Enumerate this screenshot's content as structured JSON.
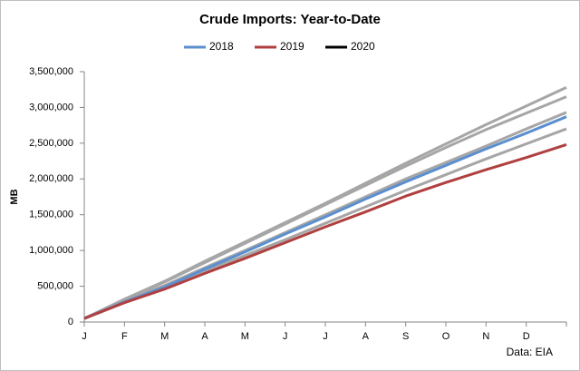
{
  "chart_data": {
    "type": "line",
    "title": "Crude Imports: Year-to-Date",
    "ylabel": "MB",
    "source": "Data: EIA",
    "categories": [
      "J",
      "F",
      "M",
      "A",
      "M",
      "J",
      "J",
      "A",
      "S",
      "O",
      "N",
      "D",
      null
    ],
    "series": [
      {
        "color": "#a6a6a6",
        "values": [
          50000,
          320000,
          570000,
          850000,
          1120000,
          1390000,
          1660000,
          1940000,
          2220000,
          2490000,
          2760000,
          3020000,
          3280000
        ]
      },
      {
        "color": "#a6a6a6",
        "values": [
          50000,
          310000,
          560000,
          830000,
          1100000,
          1370000,
          1640000,
          1910000,
          2180000,
          2440000,
          2690000,
          2920000,
          3150000
        ]
      },
      {
        "color": "#a6a6a6",
        "values": [
          50000,
          290000,
          510000,
          760000,
          1000000,
          1250000,
          1500000,
          1750000,
          2000000,
          2230000,
          2460000,
          2700000,
          2930000
        ]
      },
      {
        "color": "#a6a6a6",
        "values": [
          50000,
          280000,
          480000,
          710000,
          930000,
          1150000,
          1380000,
          1610000,
          1840000,
          2060000,
          2280000,
          2490000,
          2700000
        ]
      },
      {
        "name": "2018",
        "color": "#5b8fd0",
        "values": [
          50000,
          280000,
          490000,
          740000,
          980000,
          1230000,
          1470000,
          1720000,
          1960000,
          2190000,
          2420000,
          2640000,
          2870000
        ]
      },
      {
        "name": "2019",
        "color": "#b04040",
        "values": [
          50000,
          270000,
          460000,
          680000,
          890000,
          1110000,
          1330000,
          1540000,
          1760000,
          1950000,
          2130000,
          2300000,
          2480000
        ]
      },
      {
        "name": "2020",
        "color": "#000000",
        "values": [
          null,
          null,
          null,
          null,
          null,
          null,
          null,
          null,
          null,
          null,
          null,
          null,
          null
        ]
      }
    ],
    "ylim": [
      0,
      3500000
    ],
    "yticks": [
      0,
      {
        "value": 500000,
        "label": "500,000"
      },
      {
        "value": 1000000,
        "label": "1,000,000"
      },
      {
        "value": 1500000,
        "label": "1,500,000"
      },
      {
        "value": 2000000,
        "label": "2,000,000"
      },
      {
        "value": 2500000,
        "label": "2,500,000"
      },
      {
        "value": 3000000,
        "label": "3,000,000"
      },
      {
        "value": 3500000,
        "label": "3,500,000"
      }
    ],
    "grid": false
  }
}
